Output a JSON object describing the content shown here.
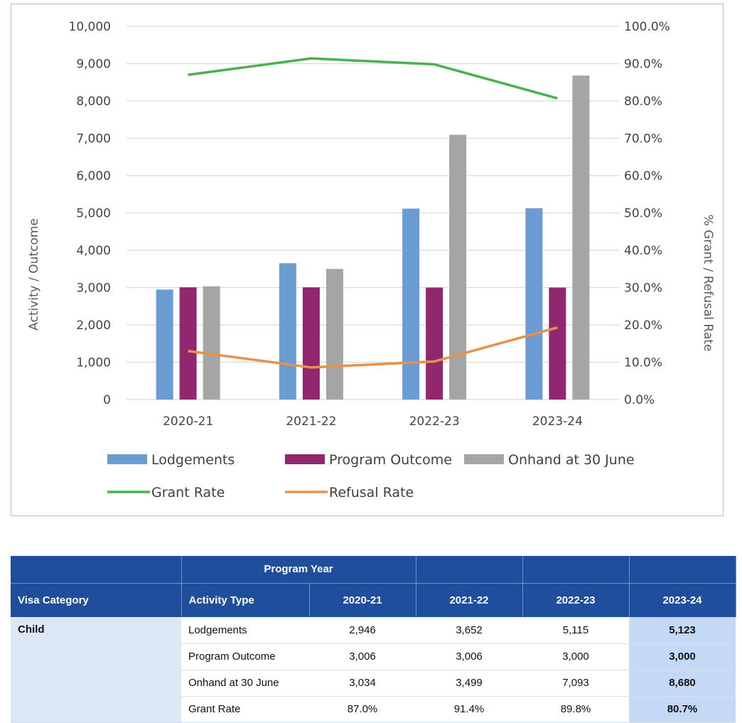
{
  "chart_data": {
    "type": "bar",
    "categories": [
      "2020-21",
      "2021-22",
      "2022-23",
      "2023-24"
    ],
    "series": [
      {
        "name": "Lodgements",
        "kind": "bar",
        "axis": "left",
        "color": "#6a9bd1",
        "values": [
          2946,
          3652,
          5115,
          5123
        ]
      },
      {
        "name": "Program Outcome",
        "kind": "bar",
        "axis": "left",
        "color": "#91286f",
        "values": [
          3006,
          3006,
          3000,
          3000
        ]
      },
      {
        "name": "Onhand at 30 June",
        "kind": "bar",
        "axis": "left",
        "color": "#a5a5a5",
        "values": [
          3034,
          3499,
          7093,
          8680
        ]
      },
      {
        "name": "Grant Rate",
        "kind": "line",
        "axis": "right",
        "color": "#4caf50",
        "values": [
          87.0,
          91.4,
          89.8,
          80.7
        ]
      },
      {
        "name": "Refusal Rate",
        "kind": "line",
        "axis": "right",
        "color": "#e8914a",
        "values": [
          13.0,
          8.6,
          10.2,
          19.3
        ]
      }
    ],
    "ylabel": "Activity / Outcome",
    "y2label": "% Grant / Refusal Rate",
    "ylim": [
      0,
      10000
    ],
    "y2lim": [
      0,
      100
    ],
    "yticks": [
      "0",
      "1,000",
      "2,000",
      "3,000",
      "4,000",
      "5,000",
      "6,000",
      "7,000",
      "8,000",
      "9,000",
      "10,000"
    ],
    "y2ticks": [
      "0.0%",
      "10.0%",
      "20.0%",
      "30.0%",
      "40.0%",
      "50.0%",
      "60.0%",
      "70.0%",
      "80.0%",
      "90.0%",
      "100.0%"
    ],
    "grid": true,
    "legend": "bottom"
  },
  "table": {
    "group_header": "Program Year",
    "columns": [
      "Visa Category",
      "Activity Type",
      "2020-21",
      "2021-22",
      "2022-23",
      "2023-24"
    ],
    "category": "Child",
    "rows": [
      {
        "activity": "Lodgements",
        "values": [
          "2,946",
          "3,652",
          "5,115",
          "5,123"
        ]
      },
      {
        "activity": "Program Outcome",
        "values": [
          "3,006",
          "3,006",
          "3,000",
          "3,000"
        ]
      },
      {
        "activity": "Onhand at 30 June",
        "values": [
          "3,034",
          "3,499",
          "7,093",
          "8,680"
        ]
      },
      {
        "activity": "Grant Rate",
        "values": [
          "87.0%",
          "91.4%",
          "89.8%",
          "80.7%"
        ]
      }
    ]
  }
}
